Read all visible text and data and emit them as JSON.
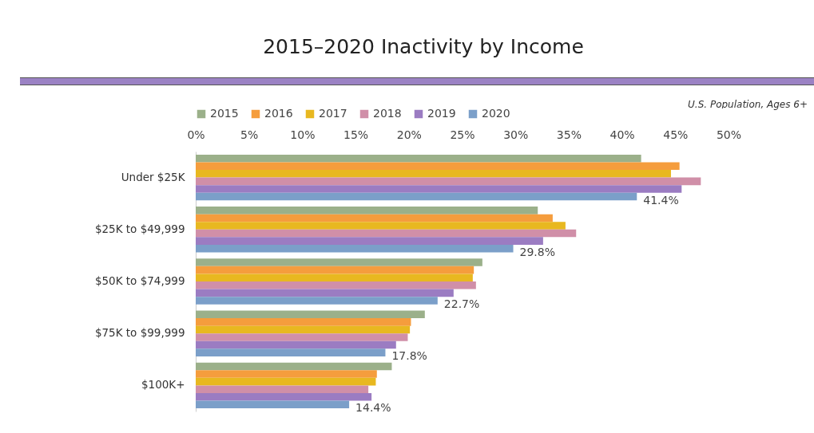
{
  "chart_data": {
    "type": "bar",
    "orientation": "horizontal",
    "title": "2015–2020 Inactivity by Income",
    "subtitle": "U.S. Population, Ages 6+",
    "categories": [
      "Under $25K",
      "$25K to $49,999",
      "$50K to $74,999",
      "$75K to $99,999",
      "$100K+"
    ],
    "series": [
      {
        "name": "2015",
        "color": "#9bb08a",
        "values": [
          41.8,
          32.1,
          26.9,
          21.5,
          18.4
        ]
      },
      {
        "name": "2016",
        "color": "#f59d3d",
        "values": [
          45.4,
          33.5,
          26.1,
          20.2,
          17.0
        ]
      },
      {
        "name": "2017",
        "color": "#e8b820",
        "values": [
          44.6,
          34.7,
          26.0,
          20.1,
          16.9
        ]
      },
      {
        "name": "2018",
        "color": "#d08fa8",
        "values": [
          47.4,
          35.7,
          26.3,
          19.9,
          16.2
        ]
      },
      {
        "name": "2019",
        "color": "#9b7cc2",
        "values": [
          45.6,
          32.6,
          24.2,
          18.8,
          16.5
        ]
      },
      {
        "name": "2020",
        "color": "#7b9fc9",
        "values": [
          41.4,
          29.8,
          22.7,
          17.8,
          14.4
        ],
        "value_labels": [
          "41.4%",
          "29.8%",
          "22.7%",
          "17.8%",
          "14.4%"
        ]
      }
    ],
    "xlim": [
      0,
      50
    ],
    "xticks": [
      {
        "value": 0,
        "label": "0%"
      },
      {
        "value": 5,
        "label": "5%"
      },
      {
        "value": 10,
        "label": "10%"
      },
      {
        "value": 15,
        "label": "15%"
      },
      {
        "value": 20,
        "label": "20%"
      },
      {
        "value": 25,
        "label": "25%"
      },
      {
        "value": 30,
        "label": "30%"
      },
      {
        "value": 35,
        "label": "35%"
      },
      {
        "value": 40,
        "label": "40%"
      },
      {
        "value": 45,
        "label": "45%"
      },
      {
        "value": 50,
        "label": "50%"
      }
    ],
    "legend": "top"
  }
}
